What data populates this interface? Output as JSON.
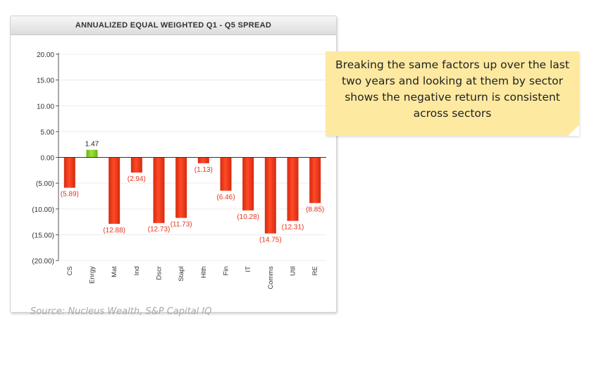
{
  "panel": {
    "title": "ANNUALIZED EQUAL WEIGHTED Q1 - Q5 SPREAD",
    "source": "Source: Nucleus Wealth, S&P Capital IQ"
  },
  "note": {
    "text": "Breaking the same factors up over the last two years and looking at them by sector shows the negative return is consistent across sectors",
    "color": "#fde9a0"
  },
  "chart_data": {
    "type": "bar",
    "title": "ANNUALIZED EQUAL WEIGHTED Q1 - Q5 SPREAD",
    "categories": [
      "CS",
      "Enrgy",
      "Mat",
      "Ind",
      "Dscr",
      "Stapl",
      "Hlth",
      "Fin",
      "IT",
      "Comms",
      "Util",
      "RE"
    ],
    "values": [
      -5.89,
      1.47,
      -12.88,
      -2.94,
      -12.73,
      -11.73,
      -1.13,
      -6.46,
      -10.28,
      -14.75,
      -12.31,
      -8.85
    ],
    "value_labels": [
      "(5.89)",
      "1.47",
      "(12.88)",
      "(2.94)",
      "(12.73)",
      "(11.73)",
      "(1.13)",
      "(6.46)",
      "(10.28)",
      "(14.75)",
      "(12.31)",
      "(8.85)"
    ],
    "yticks": [
      20,
      15,
      10,
      5,
      0,
      -5,
      -10,
      -15,
      -20
    ],
    "ytick_labels": [
      "20.00",
      "15.00",
      "10.00",
      "5.00",
      "0.00",
      "(5.00)",
      "(10.00)",
      "(15.00)",
      "(20.00)"
    ],
    "ylim": [
      -20,
      20
    ],
    "grid": true,
    "positive_color": "#8ccc28",
    "negative_color": "#e8341c",
    "negative_label_color": "#e8341c",
    "positive_label_color": "#222222"
  }
}
